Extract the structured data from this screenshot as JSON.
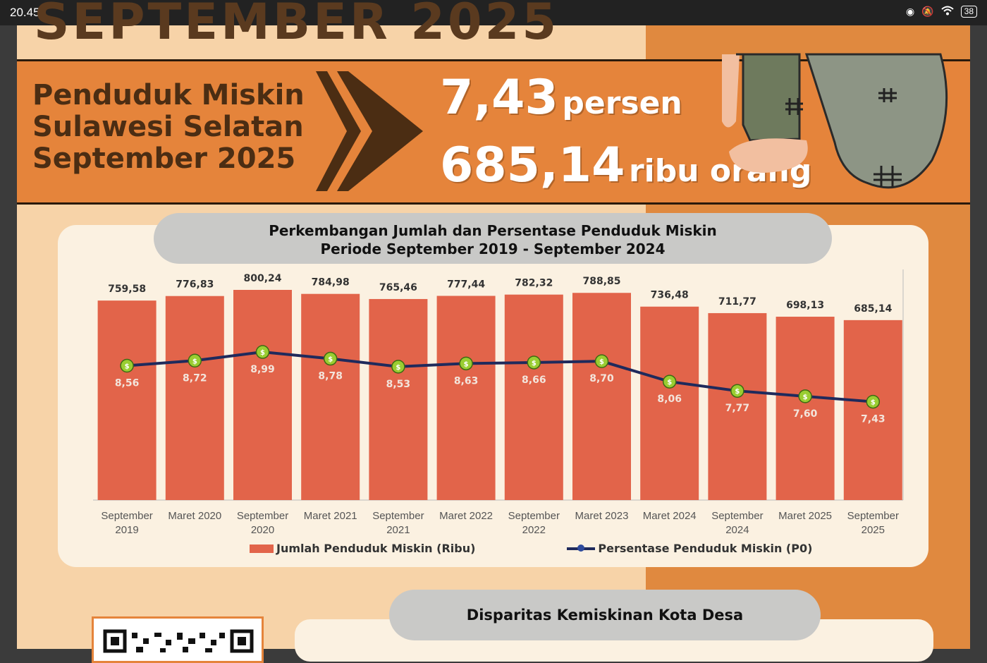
{
  "status_bar": {
    "time": "20.45",
    "battery": "38"
  },
  "header": {
    "partial_title": "SEPTEMBER 2025"
  },
  "banner": {
    "label_lines": [
      "Penduduk Miskin",
      "Sulawesi Selatan",
      "September 2025"
    ],
    "stat1_value": "7,43",
    "stat1_unit": "persen",
    "stat2_value": "685,14",
    "stat2_unit": "ribu orang"
  },
  "chart_title": {
    "line1": "Perkembangan Jumlah dan Persentase Penduduk Miskin",
    "line2": "Periode September 2019 - September 2024"
  },
  "chart_data": {
    "type": "bar",
    "categories": [
      [
        "September",
        "2019"
      ],
      [
        "Maret 2020"
      ],
      [
        "September",
        "2020"
      ],
      [
        "Maret 2021"
      ],
      [
        "September",
        "2021"
      ],
      [
        "Maret 2022"
      ],
      [
        "September",
        "2022"
      ],
      [
        "Maret 2023"
      ],
      [
        "Maret 2024"
      ],
      [
        "September",
        "2024"
      ],
      [
        "Maret 2025"
      ],
      [
        "September",
        "2025"
      ]
    ],
    "series": [
      {
        "name": "Jumlah Penduduk Miskin (Ribu)",
        "type": "bar",
        "values": [
          759.58,
          776.83,
          800.24,
          784.98,
          765.46,
          777.44,
          782.32,
          788.85,
          736.48,
          711.77,
          698.13,
          685.14
        ],
        "labels": [
          "759,58",
          "776,83",
          "800,24",
          "784,98",
          "765,46",
          "777,44",
          "782,32",
          "788,85",
          "736,48",
          "711,77",
          "698,13",
          "685,14"
        ],
        "color": "#e2644a"
      },
      {
        "name": "Persentase Penduduk Miskin (P0)",
        "type": "line",
        "values": [
          8.56,
          8.72,
          8.99,
          8.78,
          8.53,
          8.63,
          8.66,
          8.7,
          8.06,
          7.77,
          7.6,
          7.43
        ],
        "labels": [
          "8,56",
          "8,72",
          "8,99",
          "8,78",
          "8,53",
          "8,63",
          "8,66",
          "8,70",
          "8,06",
          "7,77",
          "7,60",
          "7,43"
        ],
        "color": "#1f2a5c"
      }
    ],
    "legend_position": "bottom"
  },
  "legend": {
    "bar_label": "Jumlah Penduduk Miskin (Ribu)",
    "line_label": "Persentase Penduduk Miskin (P0)"
  },
  "bottom_section": {
    "title": "Disparitas Kemiskinan Kota Desa"
  }
}
